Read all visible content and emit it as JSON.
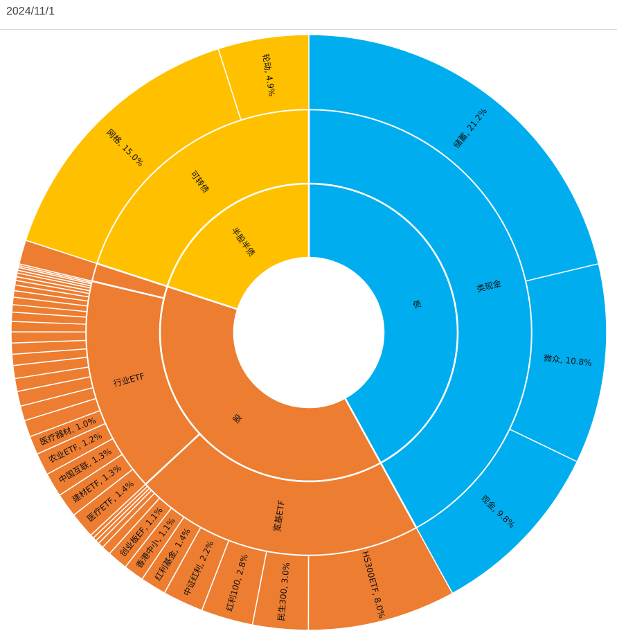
{
  "header": {
    "date": "2024/11/1"
  },
  "colors": {
    "bond": "#00AEEF",
    "stock": "#ED7D31",
    "half": "#FFC000",
    "divider": "#ffffff"
  },
  "chart_data": {
    "type": "sunburst",
    "title": "",
    "unit": "%",
    "rings": [
      "level1",
      "level2",
      "level3"
    ],
    "nodes": [
      {
        "name": "债",
        "color": "bond",
        "children": [
          {
            "name": "类现金",
            "children": [
              {
                "name": "储蓄",
                "value": 21.2,
                "label": "储蓄, 21.2%"
              },
              {
                "name": "微众",
                "value": 10.8,
                "label": "微众, 10.8%"
              },
              {
                "name": "现金",
                "value": 9.8,
                "label": "现金, 9.8%"
              }
            ]
          }
        ]
      },
      {
        "name": "股",
        "color": "stock",
        "children": [
          {
            "name": "宽基ETF",
            "children": [
              {
                "name": "HS300ETF",
                "value": 8.0,
                "label": "HS300ETF, 8.0%"
              },
              {
                "name": "民生300",
                "value": 3.0,
                "label": "民生300, 3.0%"
              },
              {
                "name": "红利100",
                "value": 2.8,
                "label": "红利100, 2.8%"
              },
              {
                "name": "中证红利",
                "value": 2.2,
                "label": "中证红利, 2.2%"
              },
              {
                "name": "红利基金",
                "value": 1.4,
                "label": "红利基金, 1.4%"
              },
              {
                "name": "香港中小",
                "value": 1.1,
                "label": "香港中小, 1.1%"
              },
              {
                "name": "创业板EF",
                "value": 1.1,
                "label": "创业板EF, 1.1%"
              },
              {
                "name": "",
                "value": 0.5,
                "label": ""
              },
              {
                "name": "",
                "value": 0.3,
                "label": ""
              },
              {
                "name": "",
                "value": 0.2,
                "label": ""
              },
              {
                "name": "",
                "value": 0.2,
                "label": ""
              },
              {
                "name": "",
                "value": 0.2,
                "label": ""
              }
            ]
          },
          {
            "name": "行业ETF",
            "children": [
              {
                "name": "医疗ETF",
                "value": 1.4,
                "label": "医疗ETF, 1.4%"
              },
              {
                "name": "建材ETF",
                "value": 1.3,
                "label": "建材ETF, 1.3%"
              },
              {
                "name": "中国互联",
                "value": 1.3,
                "label": "中国互联, 1.3%"
              },
              {
                "name": "农业ETF",
                "value": 1.2,
                "label": "农业ETF, 1.2%"
              },
              {
                "name": "医疗器材",
                "value": 1.0,
                "label": "医疗器材, 1.0%"
              },
              {
                "name": "",
                "value": 0.9,
                "label": ""
              },
              {
                "name": "",
                "value": 0.8,
                "label": ""
              },
              {
                "name": "",
                "value": 0.8,
                "label": ""
              },
              {
                "name": "",
                "value": 0.7,
                "label": ""
              },
              {
                "name": "",
                "value": 0.7,
                "label": ""
              },
              {
                "name": "",
                "value": 0.6,
                "label": ""
              },
              {
                "name": "",
                "value": 0.6,
                "label": ""
              },
              {
                "name": "",
                "value": 0.6,
                "label": ""
              },
              {
                "name": "",
                "value": 0.55,
                "label": ""
              },
              {
                "name": "",
                "value": 0.5,
                "label": ""
              },
              {
                "name": "",
                "value": 0.4,
                "label": ""
              },
              {
                "name": "",
                "value": 0.4,
                "label": ""
              },
              {
                "name": "",
                "value": 0.35,
                "label": ""
              },
              {
                "name": "",
                "value": 0.3,
                "label": ""
              },
              {
                "name": "",
                "value": 0.25,
                "label": ""
              },
              {
                "name": "",
                "value": 0.2,
                "label": ""
              },
              {
                "name": "",
                "value": 0.2,
                "label": ""
              },
              {
                "name": "",
                "value": 0.15,
                "label": ""
              },
              {
                "name": "",
                "value": 0.15,
                "label": ""
              },
              {
                "name": "",
                "value": 0.1,
                "label": ""
              },
              {
                "name": "",
                "value": 0.1,
                "label": ""
              }
            ]
          },
          {
            "name": "",
            "children": [
              {
                "name": "",
                "value": 1.3,
                "label": ""
              }
            ]
          }
        ]
      },
      {
        "name": "半股半债",
        "color": "half",
        "children": [
          {
            "name": "可转债",
            "children": [
              {
                "name": "网格",
                "value": 15.0,
                "label": "网格, 15.0%"
              },
              {
                "name": "轮动",
                "value": 4.9,
                "label": "轮动, 4.9%"
              }
            ]
          }
        ]
      }
    ]
  }
}
